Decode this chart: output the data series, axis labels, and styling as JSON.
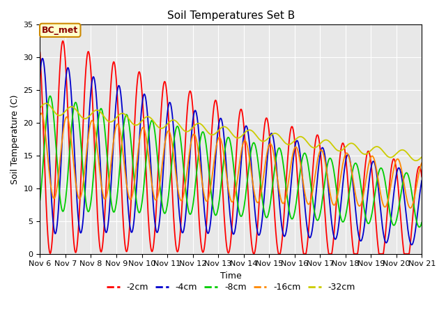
{
  "title": "Soil Temperatures Set B",
  "xlabel": "Time",
  "ylabel": "Soil Temperature (C)",
  "ylim": [
    0,
    35
  ],
  "xlim": [
    0,
    15
  ],
  "x_tick_labels": [
    "Nov 6",
    "Nov 7",
    "Nov 8",
    "Nov 9",
    "Nov 10",
    "Nov 11",
    "Nov 12",
    "Nov 13",
    "Nov 14",
    "Nov 15",
    "Nov 16",
    "Nov 17",
    "Nov 18",
    "Nov 19",
    "Nov 20",
    "Nov 21"
  ],
  "series_labels": [
    "-2cm",
    "-4cm",
    "-8cm",
    "-16cm",
    "-32cm"
  ],
  "series_colors": [
    "#ff0000",
    "#0000cc",
    "#00cc00",
    "#ff8800",
    "#cccc00"
  ],
  "annotation_text": "BC_met",
  "annotation_bg": "#ffffcc",
  "annotation_border": "#cc8800",
  "plot_bg": "#e8e8e8",
  "grid_color": "#ffffff",
  "period": 1.0,
  "trend_2cm": [
    17.0,
    -0.75
  ],
  "amp_2cm": [
    17.0,
    -0.055
  ],
  "phase_2cm": 0.65,
  "trend_4cm": [
    16.5,
    -0.65
  ],
  "amp_4cm": [
    13.5,
    -0.06
  ],
  "phase_4cm": 0.85,
  "trend_8cm": [
    15.5,
    -0.5
  ],
  "amp_8cm": [
    9.0,
    -0.055
  ],
  "phase_8cm": 1.15,
  "trend_16cm": [
    15.0,
    -0.3
  ],
  "amp_16cm": [
    6.5,
    -0.04
  ],
  "phase_16cm": 1.8,
  "trend_32cm": [
    22.3,
    -0.5
  ],
  "amp_32cm": [
    0.8,
    -0.01
  ],
  "phase_32cm": 3.0
}
